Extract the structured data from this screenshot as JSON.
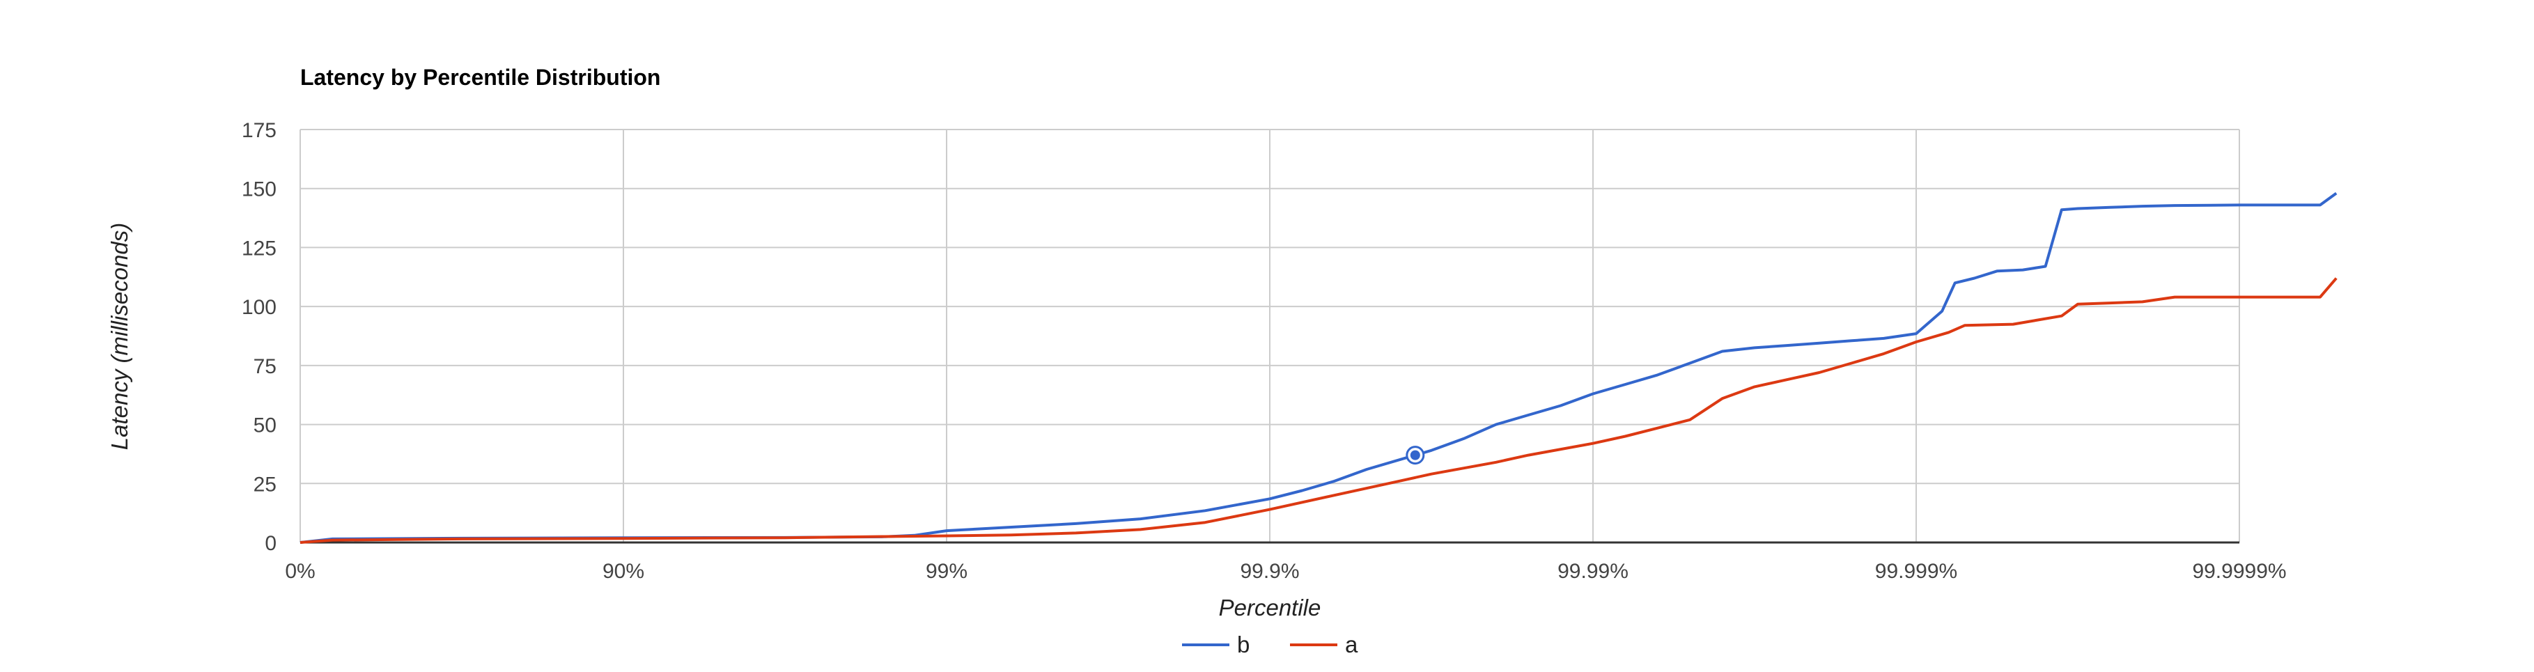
{
  "chart_data": {
    "type": "line",
    "title": "Latency by Percentile Distribution",
    "xlabel": "Percentile",
    "ylabel": "Latency (milliseconds)",
    "x_scale": "log-percentile",
    "x_tick_labels": [
      "0%",
      "90%",
      "99%",
      "99.9%",
      "99.99%",
      "99.999%",
      "99.9999%"
    ],
    "y_ticks": [
      0,
      25,
      50,
      75,
      100,
      125,
      150,
      175
    ],
    "ylim": [
      0,
      175
    ],
    "grid": true,
    "legend_position": "bottom",
    "x_positions_are_nines": true,
    "series": [
      {
        "name": "b",
        "color": "#3366cc",
        "points": [
          [
            0,
            0
          ],
          [
            0.1,
            1.5
          ],
          [
            0.5,
            1.8
          ],
          [
            1.0,
            2.0
          ],
          [
            1.5,
            2.1
          ],
          [
            1.8,
            2.4
          ],
          [
            1.9,
            3.0
          ],
          [
            2.0,
            5.0
          ],
          [
            2.2,
            6.5
          ],
          [
            2.4,
            8.0
          ],
          [
            2.6,
            10.0
          ],
          [
            2.8,
            13.5
          ],
          [
            2.9,
            16.0
          ],
          [
            3.0,
            18.5
          ],
          [
            3.1,
            22.0
          ],
          [
            3.2,
            26.0
          ],
          [
            3.3,
            31.0
          ],
          [
            3.45,
            37.0
          ],
          [
            3.5,
            39.0
          ],
          [
            3.6,
            44.0
          ],
          [
            3.7,
            50.0
          ],
          [
            3.8,
            54.0
          ],
          [
            3.9,
            58.0
          ],
          [
            4.0,
            63.0
          ],
          [
            4.1,
            67.0
          ],
          [
            4.2,
            71.0
          ],
          [
            4.3,
            76.0
          ],
          [
            4.4,
            81.0
          ],
          [
            4.5,
            82.5
          ],
          [
            4.6,
            83.5
          ],
          [
            4.7,
            84.5
          ],
          [
            4.8,
            85.5
          ],
          [
            4.9,
            86.5
          ],
          [
            5.0,
            88.5
          ],
          [
            5.08,
            98.0
          ],
          [
            5.12,
            110.0
          ],
          [
            5.18,
            112.0
          ],
          [
            5.25,
            115.0
          ],
          [
            5.33,
            115.5
          ],
          [
            5.4,
            117.0
          ],
          [
            5.45,
            141.0
          ],
          [
            5.5,
            141.5
          ],
          [
            5.6,
            142.0
          ],
          [
            5.7,
            142.5
          ],
          [
            5.8,
            142.8
          ],
          [
            6.0,
            143.0
          ],
          [
            6.25,
            143.0
          ],
          [
            6.3,
            148.0
          ]
        ]
      },
      {
        "name": "a",
        "color": "#dc3912",
        "points": [
          [
            0,
            0
          ],
          [
            0.1,
            1.0
          ],
          [
            0.5,
            1.5
          ],
          [
            1.0,
            1.7
          ],
          [
            1.5,
            2.0
          ],
          [
            1.8,
            2.5
          ],
          [
            2.0,
            2.8
          ],
          [
            2.2,
            3.2
          ],
          [
            2.4,
            4.0
          ],
          [
            2.6,
            5.5
          ],
          [
            2.8,
            8.5
          ],
          [
            3.0,
            14.0
          ],
          [
            3.2,
            20.0
          ],
          [
            3.4,
            26.0
          ],
          [
            3.5,
            29.0
          ],
          [
            3.7,
            34.0
          ],
          [
            3.8,
            37.0
          ],
          [
            4.0,
            42.0
          ],
          [
            4.1,
            45.0
          ],
          [
            4.2,
            48.5
          ],
          [
            4.3,
            52.0
          ],
          [
            4.4,
            61.0
          ],
          [
            4.5,
            66.0
          ],
          [
            4.6,
            69.0
          ],
          [
            4.7,
            72.0
          ],
          [
            4.8,
            76.0
          ],
          [
            4.9,
            80.0
          ],
          [
            5.0,
            85.0
          ],
          [
            5.1,
            89.0
          ],
          [
            5.15,
            92.0
          ],
          [
            5.3,
            92.5
          ],
          [
            5.45,
            96.0
          ],
          [
            5.5,
            101.0
          ],
          [
            5.6,
            101.5
          ],
          [
            5.7,
            102.0
          ],
          [
            5.8,
            104.0
          ],
          [
            6.0,
            104.0
          ],
          [
            6.25,
            104.0
          ],
          [
            6.3,
            112.0
          ]
        ]
      }
    ],
    "highlighted_point": {
      "series": "b",
      "x": 3.45,
      "y": 37.0
    }
  }
}
